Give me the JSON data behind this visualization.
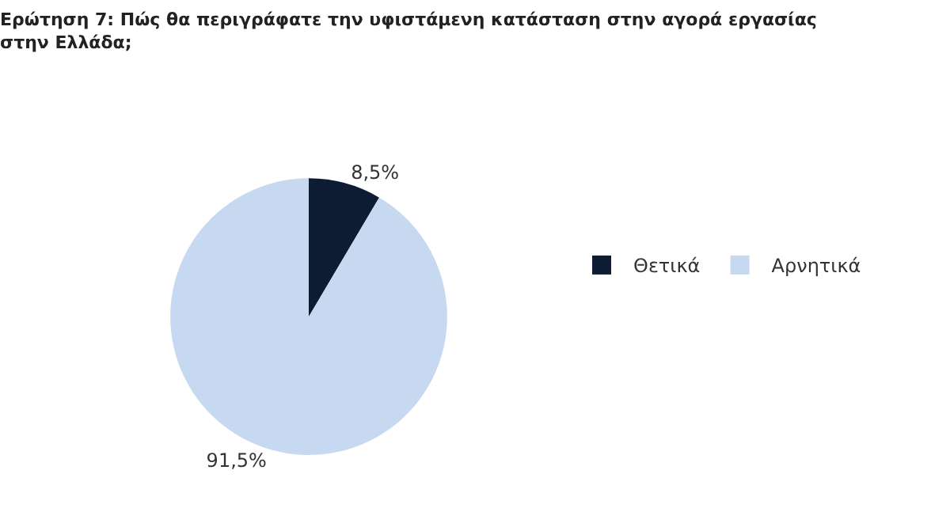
{
  "chart_data": {
    "type": "pie",
    "title": "Ερώτηση 7: Πώς θα περιγράφατε την υφιστάμενη κατάσταση στην αγορά εργασίας στην Ελλάδα;",
    "categories": [
      "Θετικά",
      "Αρνητικά"
    ],
    "values": [
      8.5,
      91.5
    ],
    "colors": [
      "#0d1b33",
      "#c6d9f1"
    ],
    "value_labels": [
      "8,5%",
      "91,5%"
    ],
    "legend": "right"
  }
}
